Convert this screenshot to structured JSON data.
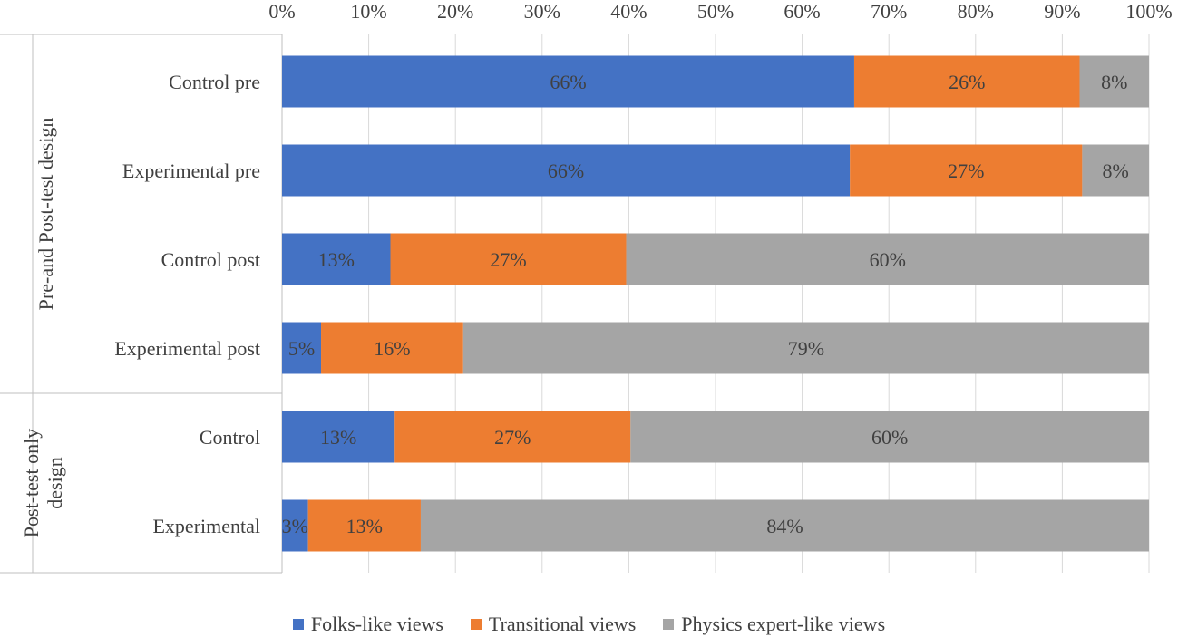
{
  "chart_data": {
    "type": "bar",
    "orientation": "horizontal",
    "stacked": true,
    "x_ticks": [
      "0%",
      "10%",
      "20%",
      "30%",
      "40%",
      "50%",
      "60%",
      "70%",
      "80%",
      "90%",
      "100%"
    ],
    "xlim": [
      0,
      100
    ],
    "grid": true,
    "legend_position": "bottom",
    "groups": [
      {
        "label": "Pre-and Post-test design",
        "categories": [
          "Control pre",
          "Experimental pre",
          "Control post",
          "Experimental post"
        ]
      },
      {
        "label": "Post-test only design",
        "categories": [
          "Control",
          "Experimental"
        ]
      }
    ],
    "categories": [
      "Control pre",
      "Experimental pre",
      "Control post",
      "Experimental post",
      "Control",
      "Experimental"
    ],
    "series": [
      {
        "name": "Folks-like views",
        "color": "#4472C4",
        "values": [
          66,
          65.5,
          12.5,
          4.5,
          13,
          3
        ],
        "labels": [
          "66%",
          "66%",
          "13%",
          "5%",
          "13%",
          "3%"
        ]
      },
      {
        "name": "Transitional views",
        "color": "#ED7D31",
        "values": [
          26,
          26.8,
          27.2,
          16.4,
          27.2,
          13
        ],
        "labels": [
          "26%",
          "27%",
          "27%",
          "16%",
          "27%",
          "13%"
        ]
      },
      {
        "name": "Physics expert-like views",
        "color": "#A5A5A5",
        "values": [
          8,
          7.7,
          60.3,
          79.1,
          59.8,
          84
        ],
        "labels": [
          "8%",
          "8%",
          "60%",
          "79%",
          "60%",
          "84%"
        ]
      }
    ]
  }
}
